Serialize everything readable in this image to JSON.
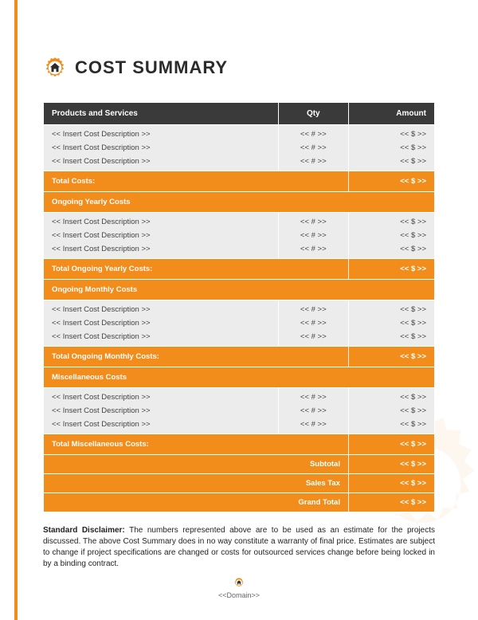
{
  "colors": {
    "accent": "#f28c1a",
    "header_bg": "#3a3a3a",
    "row_bg": "#ececec",
    "text": "#2b2b2b"
  },
  "title": "COST SUMMARY",
  "table": {
    "headers": {
      "desc": "Products and Services",
      "qty": "Qty",
      "amount": "Amount"
    },
    "placeholder_desc": "<< Insert Cost Description >>",
    "placeholder_qty": "<< # >>",
    "placeholder_amt": "<< $ >>",
    "sections": [
      {
        "header": null,
        "rows": 3,
        "total_label": "Total Costs:"
      },
      {
        "header": "Ongoing Yearly Costs",
        "rows": 3,
        "total_label": "Total Ongoing Yearly Costs:"
      },
      {
        "header": "Ongoing Monthly Costs",
        "rows": 3,
        "total_label": "Total Ongoing Monthly Costs:"
      },
      {
        "header": "Miscellaneous Costs",
        "rows": 3,
        "total_label": "Total Miscellaneous Costs:"
      }
    ],
    "summary": {
      "subtotal_label": "Subtotal",
      "tax_label": "Sales Tax",
      "grand_label": "Grand Total"
    }
  },
  "disclaimer": {
    "label": "Standard Disclaimer:",
    "text": "The numbers represented above are to be used as an estimate for the projects discussed. The above Cost Summary does in no way constitute a warranty of final price.  Estimates are subject to change if project specifications are changed or costs for outsourced services change before being locked in by a binding contract."
  },
  "footer": {
    "domain": "<<Domain>>"
  }
}
